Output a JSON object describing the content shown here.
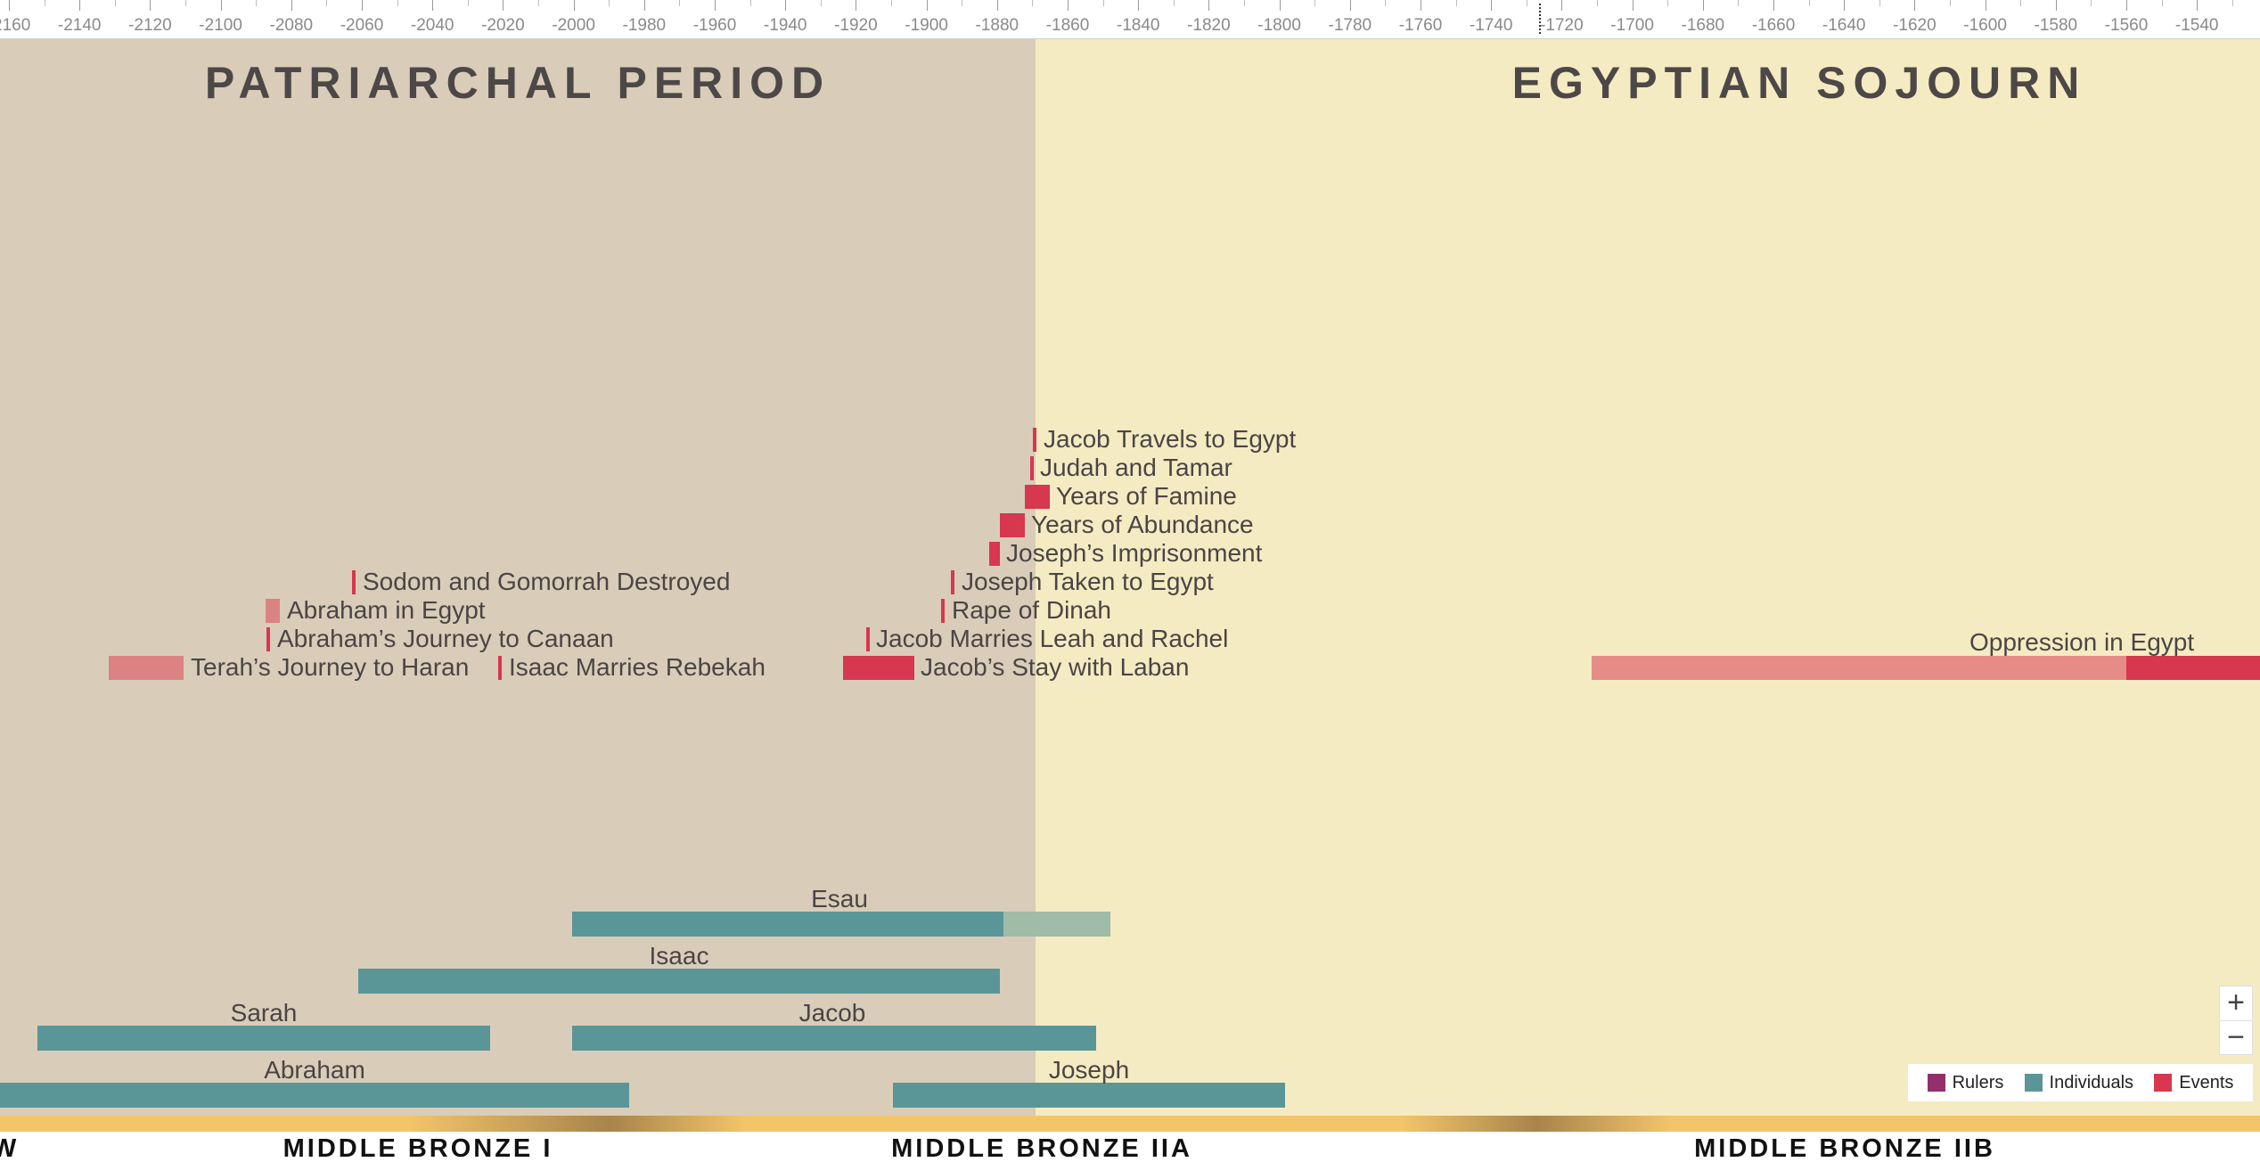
{
  "ruler": {
    "labels": [
      "-2160",
      "-2140",
      "-2120",
      "-2100",
      "-2080",
      "-2060",
      "-2040",
      "-2020",
      "-2000",
      "-1980",
      "-1960",
      "-1940",
      "-1920",
      "-1900",
      "-1880",
      "-1860",
      "-1840",
      "-1820",
      "-1800",
      "-1780",
      "-1760",
      "-1740",
      "-1720",
      "-1700",
      "-1680",
      "-1660",
      "-1640",
      "-1620",
      "-1600",
      "-1580",
      "-1560",
      "-1540"
    ]
  },
  "eras": {
    "patriarchal": "PATRIARCHAL PERIOD",
    "egyptian": "EGYPTIAN SOJOURN"
  },
  "events": [
    {
      "label": "Terah’s Journey to Haran"
    },
    {
      "label": "Sodom and Gomorrah Destroyed"
    },
    {
      "label": "Abraham in Egypt"
    },
    {
      "label": "Abraham’s Journey to Canaan"
    },
    {
      "label": "Isaac Marries Rebekah"
    },
    {
      "label": "Jacob’s Stay with Laban"
    },
    {
      "label": "Jacob Marries Leah and Rachel"
    },
    {
      "label": "Rape of Dinah"
    },
    {
      "label": "Joseph Taken to Egypt"
    },
    {
      "label": "Joseph’s Imprisonment"
    },
    {
      "label": "Years of Abundance"
    },
    {
      "label": "Years of Famine"
    },
    {
      "label": "Judah and Tamar"
    },
    {
      "label": "Jacob Travels to Egypt"
    },
    {
      "label": "Oppression in Egypt"
    }
  ],
  "individuals": [
    {
      "label": "Esau"
    },
    {
      "label": "Isaac"
    },
    {
      "label": "Sarah"
    },
    {
      "label": "Jacob"
    },
    {
      "label": "Abraham"
    },
    {
      "label": "Joseph"
    }
  ],
  "zoom": {
    "in": "+",
    "out": "−"
  },
  "legend": [
    {
      "label": "Rulers",
      "color": "#93306c"
    },
    {
      "label": "Individuals",
      "color": "#5a9698"
    },
    {
      "label": "Events",
      "color": "#d7374f"
    }
  ],
  "cultures": {
    "left_edge": "W",
    "mb1": "MIDDLE BRONZE I",
    "mb2a": "MIDDLE BRONZE IIA",
    "mb2b": "MIDDLE BRONZE IIB"
  },
  "colors": {
    "event_solid": "#d7374f",
    "event_faded": "#e08585",
    "individual": "#5a9698",
    "individual_faded": "#a0bba8"
  }
}
